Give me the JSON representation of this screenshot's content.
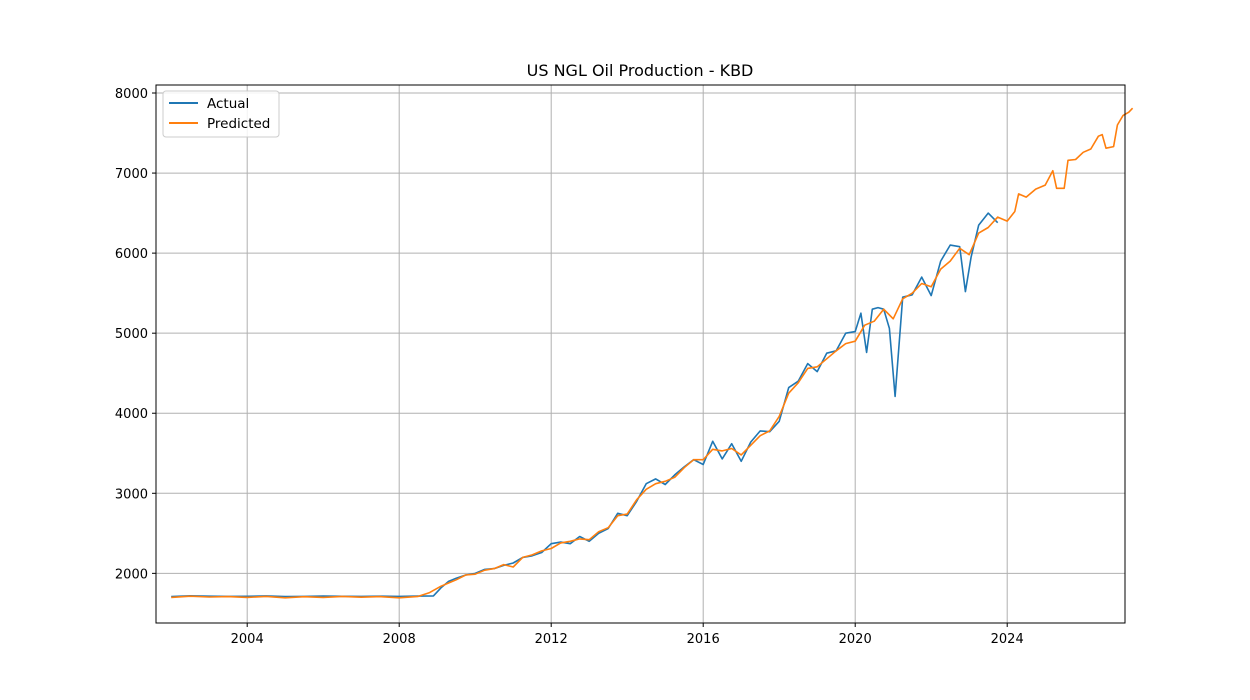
{
  "chart_data": {
    "type": "line",
    "title": "US NGL Oil Production - KBD",
    "xlabel": "",
    "ylabel": "",
    "xlim": [
      2001.6,
      2027.1
    ],
    "ylim": [
      1380,
      8100
    ],
    "x_ticks": [
      2004,
      2008,
      2012,
      2016,
      2020,
      2024
    ],
    "x_tick_labels": [
      "2004",
      "2008",
      "2012",
      "2016",
      "2020",
      "2024"
    ],
    "y_ticks": [
      2000,
      3000,
      4000,
      5000,
      6000,
      7000,
      8000
    ],
    "y_tick_labels": [
      "2000",
      "3000",
      "4000",
      "5000",
      "6000",
      "7000",
      "8000"
    ],
    "grid": true,
    "legend_position": "upper-left",
    "series": [
      {
        "name": "Actual",
        "color": "#1f77b4",
        "points": [
          [
            2002.0,
            1710
          ],
          [
            2002.5,
            1720
          ],
          [
            2003.0,
            1715
          ],
          [
            2003.5,
            1712
          ],
          [
            2004.0,
            1714
          ],
          [
            2004.5,
            1718
          ],
          [
            2005.0,
            1710
          ],
          [
            2005.5,
            1712
          ],
          [
            2006.0,
            1716
          ],
          [
            2006.5,
            1713
          ],
          [
            2007.0,
            1712
          ],
          [
            2007.5,
            1715
          ],
          [
            2008.0,
            1712
          ],
          [
            2008.5,
            1716
          ],
          [
            2008.9,
            1718
          ],
          [
            2009.1,
            1820
          ],
          [
            2009.3,
            1900
          ],
          [
            2009.5,
            1940
          ],
          [
            2009.75,
            1980
          ],
          [
            2010.0,
            2000
          ],
          [
            2010.25,
            2050
          ],
          [
            2010.5,
            2060
          ],
          [
            2010.75,
            2100
          ],
          [
            2011.0,
            2130
          ],
          [
            2011.25,
            2200
          ],
          [
            2011.5,
            2220
          ],
          [
            2011.75,
            2260
          ],
          [
            2012.0,
            2370
          ],
          [
            2012.25,
            2390
          ],
          [
            2012.5,
            2370
          ],
          [
            2012.75,
            2460
          ],
          [
            2013.0,
            2400
          ],
          [
            2013.25,
            2500
          ],
          [
            2013.5,
            2560
          ],
          [
            2013.75,
            2750
          ],
          [
            2014.0,
            2720
          ],
          [
            2014.25,
            2900
          ],
          [
            2014.5,
            3120
          ],
          [
            2014.75,
            3180
          ],
          [
            2015.0,
            3110
          ],
          [
            2015.25,
            3230
          ],
          [
            2015.5,
            3330
          ],
          [
            2015.75,
            3420
          ],
          [
            2016.0,
            3360
          ],
          [
            2016.25,
            3650
          ],
          [
            2016.5,
            3430
          ],
          [
            2016.75,
            3620
          ],
          [
            2017.0,
            3400
          ],
          [
            2017.25,
            3640
          ],
          [
            2017.5,
            3780
          ],
          [
            2017.75,
            3770
          ],
          [
            2018.0,
            3900
          ],
          [
            2018.25,
            4320
          ],
          [
            2018.5,
            4400
          ],
          [
            2018.75,
            4620
          ],
          [
            2019.0,
            4520
          ],
          [
            2019.25,
            4750
          ],
          [
            2019.5,
            4780
          ],
          [
            2019.75,
            5000
          ],
          [
            2020.0,
            5020
          ],
          [
            2020.15,
            5250
          ],
          [
            2020.3,
            4760
          ],
          [
            2020.45,
            5300
          ],
          [
            2020.6,
            5320
          ],
          [
            2020.75,
            5300
          ],
          [
            2020.9,
            5060
          ],
          [
            2021.05,
            4210
          ],
          [
            2021.25,
            5450
          ],
          [
            2021.5,
            5480
          ],
          [
            2021.75,
            5700
          ],
          [
            2022.0,
            5470
          ],
          [
            2022.25,
            5900
          ],
          [
            2022.5,
            6100
          ],
          [
            2022.75,
            6080
          ],
          [
            2022.9,
            5520
          ],
          [
            2023.05,
            5950
          ],
          [
            2023.25,
            6350
          ],
          [
            2023.5,
            6500
          ],
          [
            2023.75,
            6380
          ]
        ]
      },
      {
        "name": "Predicted",
        "color": "#ff7f0e",
        "points": [
          [
            2002.0,
            1700
          ],
          [
            2002.5,
            1715
          ],
          [
            2003.0,
            1705
          ],
          [
            2003.5,
            1710
          ],
          [
            2004.0,
            1700
          ],
          [
            2004.5,
            1712
          ],
          [
            2005.0,
            1695
          ],
          [
            2005.5,
            1708
          ],
          [
            2006.0,
            1700
          ],
          [
            2006.5,
            1712
          ],
          [
            2007.0,
            1702
          ],
          [
            2007.5,
            1710
          ],
          [
            2008.0,
            1695
          ],
          [
            2008.5,
            1712
          ],
          [
            2008.8,
            1760
          ],
          [
            2009.1,
            1840
          ],
          [
            2009.3,
            1880
          ],
          [
            2009.5,
            1920
          ],
          [
            2009.75,
            1980
          ],
          [
            2010.0,
            1990
          ],
          [
            2010.25,
            2040
          ],
          [
            2010.5,
            2060
          ],
          [
            2010.75,
            2110
          ],
          [
            2011.0,
            2080
          ],
          [
            2011.25,
            2200
          ],
          [
            2011.5,
            2230
          ],
          [
            2011.75,
            2280
          ],
          [
            2012.0,
            2310
          ],
          [
            2012.25,
            2380
          ],
          [
            2012.5,
            2400
          ],
          [
            2012.75,
            2430
          ],
          [
            2013.0,
            2420
          ],
          [
            2013.25,
            2520
          ],
          [
            2013.5,
            2570
          ],
          [
            2013.75,
            2720
          ],
          [
            2014.0,
            2740
          ],
          [
            2014.25,
            2920
          ],
          [
            2014.5,
            3050
          ],
          [
            2014.75,
            3120
          ],
          [
            2015.0,
            3150
          ],
          [
            2015.25,
            3200
          ],
          [
            2015.5,
            3320
          ],
          [
            2015.75,
            3420
          ],
          [
            2016.0,
            3420
          ],
          [
            2016.25,
            3550
          ],
          [
            2016.5,
            3530
          ],
          [
            2016.75,
            3560
          ],
          [
            2017.0,
            3480
          ],
          [
            2017.25,
            3600
          ],
          [
            2017.5,
            3720
          ],
          [
            2017.75,
            3780
          ],
          [
            2018.0,
            3960
          ],
          [
            2018.25,
            4250
          ],
          [
            2018.5,
            4380
          ],
          [
            2018.75,
            4560
          ],
          [
            2019.0,
            4580
          ],
          [
            2019.25,
            4680
          ],
          [
            2019.5,
            4780
          ],
          [
            2019.75,
            4870
          ],
          [
            2020.0,
            4900
          ],
          [
            2020.25,
            5100
          ],
          [
            2020.5,
            5150
          ],
          [
            2020.75,
            5300
          ],
          [
            2021.0,
            5180
          ],
          [
            2021.25,
            5430
          ],
          [
            2021.5,
            5500
          ],
          [
            2021.75,
            5620
          ],
          [
            2022.0,
            5580
          ],
          [
            2022.25,
            5800
          ],
          [
            2022.5,
            5900
          ],
          [
            2022.75,
            6060
          ],
          [
            2023.0,
            5980
          ],
          [
            2023.25,
            6250
          ],
          [
            2023.5,
            6320
          ],
          [
            2023.75,
            6450
          ],
          [
            2024.0,
            6400
          ],
          [
            2024.2,
            6520
          ],
          [
            2024.3,
            6740
          ],
          [
            2024.5,
            6700
          ],
          [
            2024.75,
            6800
          ],
          [
            2025.0,
            6850
          ],
          [
            2025.2,
            7030
          ],
          [
            2025.3,
            6810
          ],
          [
            2025.5,
            6810
          ],
          [
            2025.6,
            7160
          ],
          [
            2025.8,
            7170
          ],
          [
            2026.0,
            7260
          ],
          [
            2026.2,
            7300
          ],
          [
            2026.4,
            7460
          ],
          [
            2026.5,
            7480
          ],
          [
            2026.6,
            7310
          ],
          [
            2026.8,
            7330
          ],
          [
            2026.9,
            7600
          ],
          [
            2027.05,
            7720
          ],
          [
            2027.2,
            7760
          ],
          [
            2027.3,
            7810
          ]
        ]
      }
    ]
  }
}
